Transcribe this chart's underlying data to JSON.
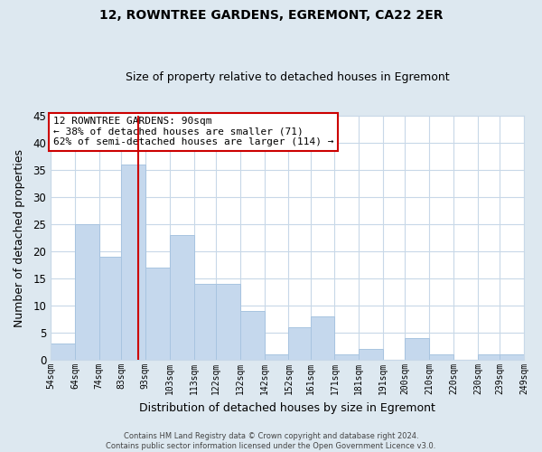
{
  "title": "12, ROWNTREE GARDENS, EGREMONT, CA22 2ER",
  "subtitle": "Size of property relative to detached houses in Egremont",
  "xlabel": "Distribution of detached houses by size in Egremont",
  "ylabel": "Number of detached properties",
  "footer_line1": "Contains HM Land Registry data © Crown copyright and database right 2024.",
  "footer_line2": "Contains public sector information licensed under the Open Government Licence v3.0.",
  "annotation_line1": "12 ROWNTREE GARDENS: 90sqm",
  "annotation_line2": "← 38% of detached houses are smaller (71)",
  "annotation_line3": "62% of semi-detached houses are larger (114) →",
  "bar_edges": [
    54,
    64,
    74,
    83,
    93,
    103,
    113,
    122,
    132,
    142,
    152,
    161,
    171,
    181,
    191,
    200,
    210,
    220,
    230,
    239,
    249
  ],
  "bar_heights": [
    3,
    25,
    19,
    36,
    17,
    23,
    14,
    14,
    9,
    1,
    6,
    8,
    1,
    2,
    0,
    4,
    1,
    0,
    1,
    1
  ],
  "bar_color": "#c5d8ed",
  "bar_edgecolor": "#a8c4e0",
  "vline_x": 90,
  "vline_color": "#cc0000",
  "ylim": [
    0,
    45
  ],
  "yticks": [
    0,
    5,
    10,
    15,
    20,
    25,
    30,
    35,
    40,
    45
  ],
  "fig_bg_color": "#dde8f0",
  "ax_bg_color": "#ffffff",
  "grid_color": "#c8d8e8",
  "annotation_box_edgecolor": "#cc0000",
  "annotation_box_facecolor": "#ffffff",
  "title_fontsize": 10,
  "subtitle_fontsize": 9
}
